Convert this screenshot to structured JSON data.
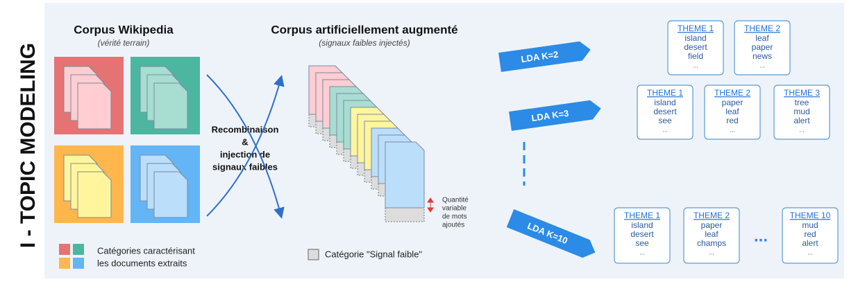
{
  "side_title": "I - TOPIC MODELING",
  "corpus_wikipedia": {
    "title": "Corpus Wikipedia",
    "subtitle": "(vérité terrain)"
  },
  "legend_categories": [
    "Catégories caractérisant",
    "les documents extraits"
  ],
  "process": [
    "Recombinaison",
    "&",
    "injection de",
    "signaux faibles"
  ],
  "augmented": {
    "title": "Corpus artificiellement augmenté",
    "subtitle": "(signaux faibles injectés)"
  },
  "quantity_note": [
    "Quantité",
    "variable",
    "de mots",
    "ajoutés"
  ],
  "legend_signal": "Catégorie \"Signal faible\"",
  "lda": [
    {
      "label": "LDA K=2",
      "themes": [
        {
          "title": "THEME 1",
          "words": [
            "island",
            "desert",
            "field",
            "..."
          ]
        },
        {
          "title": "THEME 2",
          "words": [
            "leaf",
            "paper",
            "news",
            "..."
          ]
        }
      ]
    },
    {
      "label": "LDA K=3",
      "themes": [
        {
          "title": "THEME 1",
          "words": [
            "island",
            "desert",
            "see",
            "..."
          ]
        },
        {
          "title": "THEME 2",
          "words": [
            "paper",
            "leaf",
            "red",
            "..."
          ]
        },
        {
          "title": "THEME 3",
          "words": [
            "tree",
            "mud",
            "alert",
            "..."
          ]
        }
      ]
    },
    {
      "label": "LDA K=10",
      "themes": [
        {
          "title": "THEME 1",
          "words": [
            "island",
            "desert",
            "see",
            "..."
          ]
        },
        {
          "title": "THEME 2",
          "words": [
            "paper",
            "leaf",
            "champs",
            "..."
          ]
        },
        {
          "title": "THEME 10",
          "words": [
            "mud",
            "red",
            "alert",
            "..."
          ]
        }
      ],
      "ellipsis": "..."
    }
  ]
}
